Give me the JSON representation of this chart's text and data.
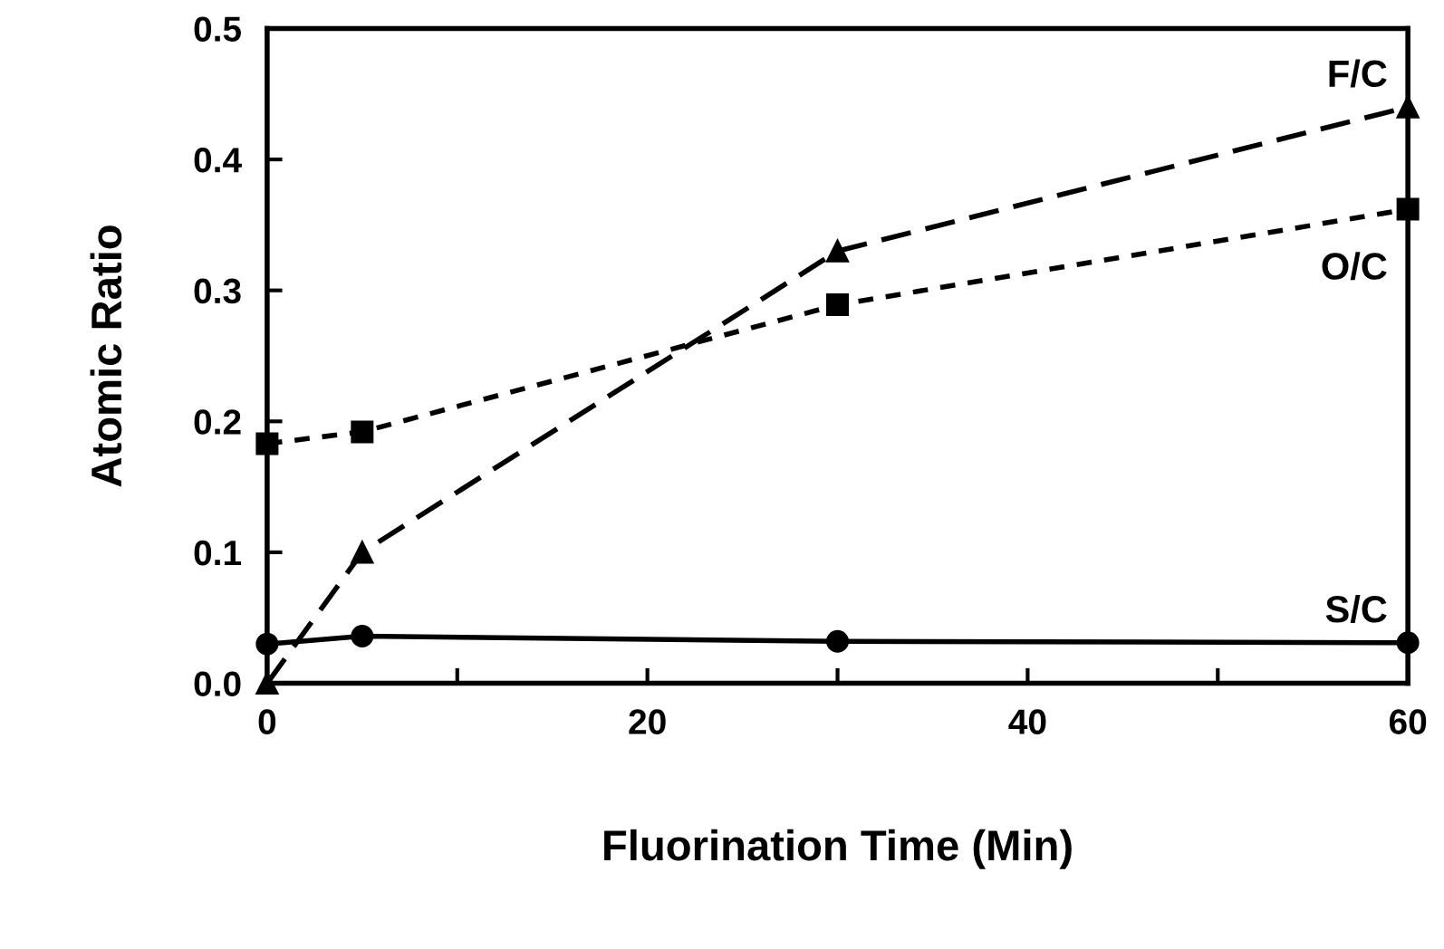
{
  "chart_data": {
    "type": "line",
    "xlabel": "Fluorination Time (Min)",
    "ylabel": "Atomic Ratio",
    "x": [
      0,
      5,
      30,
      60
    ],
    "series": [
      {
        "name": "F/C",
        "color": "#000000",
        "values": [
          0.0,
          0.1,
          0.33,
          0.44
        ],
        "marker": "triangle",
        "line_style": "dashed"
      },
      {
        "name": "O/C",
        "color": "#000000",
        "values": [
          0.183,
          0.192,
          0.289,
          0.362
        ],
        "marker": "square",
        "line_style": "dotted"
      },
      {
        "name": "S/C",
        "color": "#000000",
        "values": [
          0.03,
          0.036,
          0.032,
          0.031
        ],
        "marker": "circle",
        "line_style": "solid"
      }
    ],
    "xlim": [
      0,
      60
    ],
    "ylim": [
      0,
      0.5
    ],
    "xticks": [
      0,
      {
        "value": 10,
        "label": null
      },
      20,
      {
        "value": 30,
        "label": null
      },
      40,
      {
        "value": 50,
        "label": null
      },
      60
    ],
    "yticks": [
      {
        "value": 0,
        "label": "0.0"
      },
      0.1,
      0.2,
      0.3,
      0.4,
      0.5
    ],
    "grid": false,
    "legend": false
  }
}
